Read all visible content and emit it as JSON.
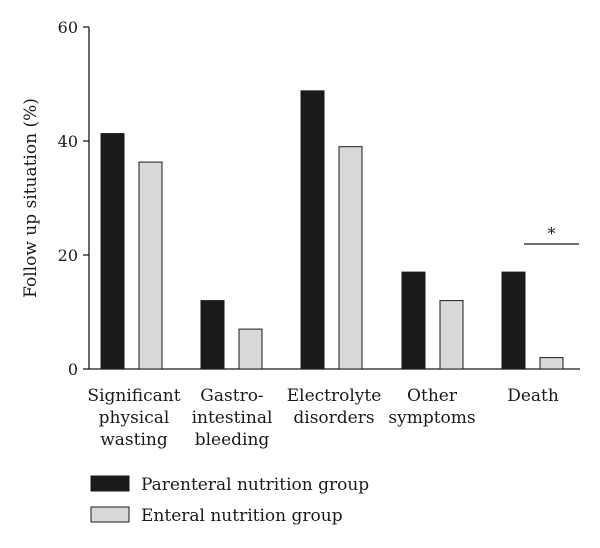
{
  "chart_data": {
    "type": "bar",
    "title": "",
    "xlabel": "",
    "ylabel": "Follow up situation (%)",
    "ylim": [
      0,
      60
    ],
    "yticks": [
      0,
      20,
      40,
      60
    ],
    "grid": false,
    "legend_position": "bottom-left",
    "categories": [
      [
        "Significant",
        "physical",
        "wasting"
      ],
      [
        "Gastro-",
        "intestinal",
        "bleeding"
      ],
      [
        "Electrolyte",
        "disorders"
      ],
      [
        "Other",
        "symptoms"
      ],
      [
        "Death"
      ]
    ],
    "series": [
      {
        "name": "Parenteral nutrition group",
        "color": "#1a1a1a",
        "values": [
          41.3,
          12.0,
          48.8,
          17.0,
          17.0
        ]
      },
      {
        "name": "Enteral nutrition group",
        "color": "#d9d9d9",
        "values": [
          36.3,
          7.0,
          39.0,
          12.0,
          2.0
        ]
      }
    ],
    "annotations": [
      {
        "category_index": 4,
        "text": "*"
      }
    ]
  }
}
